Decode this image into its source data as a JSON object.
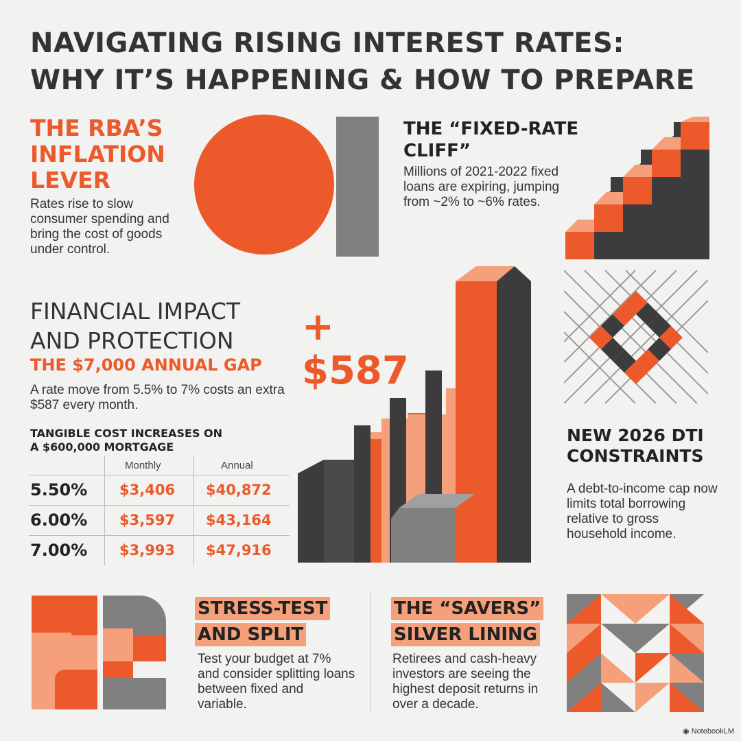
{
  "title": {
    "line1": "NAVIGATING RISING INTEREST RATES:",
    "line2": "WHY IT’S HAPPENING & HOW TO PREPARE"
  },
  "rba": {
    "heading_lines": [
      "THE RBA’S",
      "INFLATION",
      "LEVER"
    ],
    "body": "Rates rise to slow consumer spending and bring the cost of goods under control."
  },
  "fixed_rate": {
    "heading_lines": [
      "THE “FIXED-RATE",
      "CLIFF”"
    ],
    "body": "Millions of 2021-2022 fixed loans are expiring, jumping from ~2% to ~6% rates."
  },
  "impact": {
    "heading_lines": [
      "FINANCIAL IMPACT",
      "AND PROTECTION"
    ],
    "subheading": "THE $7,000 ANNUAL GAP",
    "body": "A rate move from 5.5% to 7% costs an extra $587 every month.",
    "big_number": "+ $587"
  },
  "table": {
    "heading_lines": [
      "TANGIBLE COST INCREASES ON",
      "A $600,000 MORTGAGE"
    ],
    "columns": [
      "Monthly",
      "Annual"
    ],
    "rows": [
      {
        "rate": "5.50%",
        "monthly": "$3,406",
        "annual": "$40,872"
      },
      {
        "rate": "6.00%",
        "monthly": "$3,597",
        "annual": "$43,164"
      },
      {
        "rate": "7.00%",
        "monthly": "$3,993",
        "annual": "$47,916"
      }
    ]
  },
  "dti": {
    "heading_lines": [
      "NEW 2026 DTI",
      "CONSTRAINTS"
    ],
    "body": "A debt-to-income cap now limits total borrowing relative to gross household income."
  },
  "stress": {
    "heading_lines": [
      "STRESS-TEST",
      "AND SPLIT"
    ],
    "body": "Test your budget at 7% and consider splitting loans between fixed and variable."
  },
  "savers": {
    "heading_lines": [
      "THE “SAVERS”",
      "SILVER LINING"
    ],
    "body": "Retirees and cash-heavy investors are seeing the highest deposit returns in over a decade."
  },
  "brand": "NotebookLM",
  "colors": {
    "orange": "#ec5a2b",
    "light_orange": "#f5a07a",
    "dark_gray": "#3c3c3c",
    "mid_gray": "#808080",
    "background": "#f2f2f0"
  }
}
